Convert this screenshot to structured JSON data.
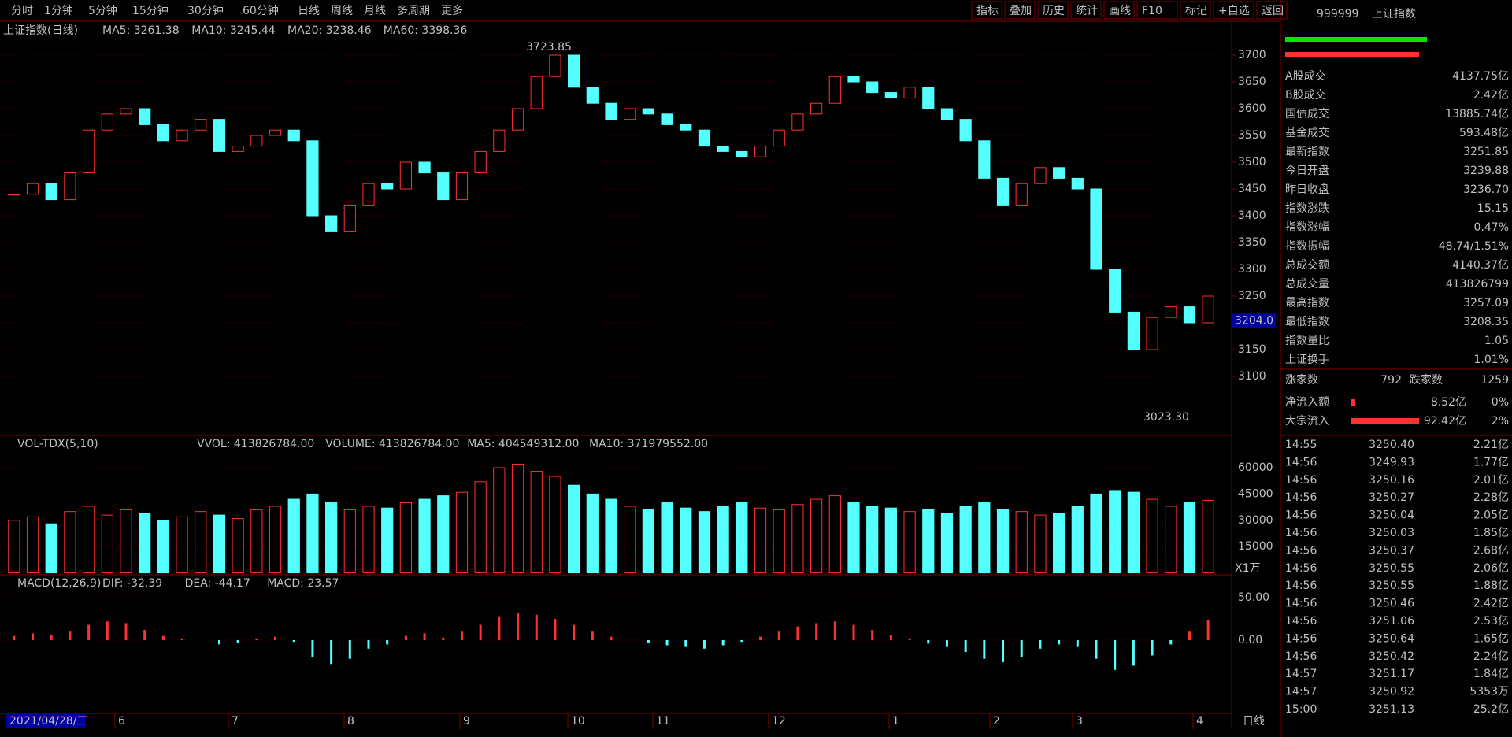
{
  "toolbar": {
    "periods": [
      "分时",
      "1分钟",
      "5分钟",
      "15分钟",
      "30分钟",
      "60分钟",
      "日线",
      "周线",
      "月线",
      "多周期",
      "更多"
    ],
    "active": "日线",
    "tools": [
      "指标",
      "叠加",
      "历史",
      "统计",
      "画线",
      "F10",
      "标记",
      "+自选",
      "返回"
    ]
  },
  "price": {
    "title": "上证指数(日线)",
    "legend": [
      "MA5: 3261.38",
      "MA10: 3245.44",
      "MA20: 3238.46",
      "MA60: 3398.36"
    ],
    "yticks": [
      3100,
      3150,
      3200,
      3250,
      3300,
      3350,
      3400,
      3450,
      3500,
      3550,
      3600,
      3650,
      3700
    ],
    "closes": [
      3440,
      3460,
      3430,
      3480,
      3560,
      3590,
      3600,
      3570,
      3540,
      3560,
      3580,
      3520,
      3530,
      3550,
      3560,
      3540,
      3400,
      3370,
      3420,
      3460,
      3450,
      3500,
      3480,
      3430,
      3480,
      3520,
      3560,
      3600,
      3660,
      3700,
      3640,
      3610,
      3580,
      3600,
      3590,
      3570,
      3560,
      3530,
      3520,
      3510,
      3530,
      3560,
      3590,
      3610,
      3660,
      3650,
      3630,
      3620,
      3640,
      3600,
      3580,
      3540,
      3470,
      3420,
      3460,
      3490,
      3470,
      3450,
      3300,
      3220,
      3150,
      3210,
      3230,
      3200,
      3250
    ],
    "high_label": {
      "value": 3723.85,
      "label": "3723.85"
    },
    "low_label": {
      "value": 3023.3,
      "label": "3023.30"
    },
    "cursor": {
      "value": 3204.0,
      "label": "3204.0"
    }
  },
  "volume": {
    "title": "VOL-TDX(5,10)",
    "legend": [
      "VVOL: 413826784.00",
      "VOLUME: 413826784.00",
      "MA5: 404549312.00",
      "MA10: 371979552.00"
    ],
    "unit": "X1万",
    "yticks": [
      15000,
      30000,
      45000,
      60000
    ],
    "values": [
      30000,
      32000,
      28000,
      35000,
      38000,
      33000,
      36000,
      34000,
      30000,
      32000,
      35000,
      33000,
      31000,
      36000,
      38000,
      42000,
      45000,
      40000,
      36000,
      38000,
      37000,
      40000,
      42000,
      44000,
      46000,
      52000,
      60000,
      62000,
      58000,
      55000,
      50000,
      45000,
      42000,
      38000,
      36000,
      40000,
      37000,
      35000,
      38000,
      40000,
      37000,
      36000,
      39000,
      42000,
      44000,
      40000,
      38000,
      37000,
      35000,
      36000,
      34000,
      38000,
      40000,
      36000,
      35000,
      33000,
      34000,
      38000,
      45000,
      47000,
      46000,
      42000,
      38000,
      40000,
      41383
    ]
  },
  "macd": {
    "title": "MACD(12,26,9)",
    "legend": [
      "DIF: -32.39",
      "DEA: -44.17",
      "MACD: 23.57"
    ],
    "yticks": [
      {
        "value": 0,
        "label": "0.00"
      },
      {
        "value": 50,
        "label": "50.00"
      }
    ],
    "values": [
      5,
      8,
      6,
      10,
      18,
      22,
      20,
      12,
      5,
      2,
      0,
      -5,
      -3,
      2,
      4,
      -2,
      -20,
      -28,
      -22,
      -10,
      -5,
      5,
      8,
      3,
      10,
      18,
      28,
      32,
      30,
      25,
      18,
      10,
      4,
      0,
      -3,
      -6,
      -8,
      -10,
      -6,
      -2,
      4,
      10,
      16,
      20,
      22,
      18,
      12,
      6,
      2,
      -4,
      -8,
      -14,
      -22,
      -26,
      -20,
      -10,
      -5,
      -8,
      -22,
      -35,
      -30,
      -18,
      -5,
      10,
      23.57
    ]
  },
  "dates": {
    "start": "2021/04/28/三",
    "months": [
      "6",
      "7",
      "8",
      "9",
      "10",
      "11",
      "12",
      "1",
      "2",
      "3",
      "4"
    ],
    "period": "日线"
  },
  "panel": {
    "code": "999999",
    "name": "上证指数",
    "stats": [
      {
        "label": "A股成交",
        "value": "4137.75亿",
        "color": "#ffff54"
      },
      {
        "label": "B股成交",
        "value": "2.42亿",
        "color": "#ffff54"
      },
      {
        "label": "国债成交",
        "value": "13885.74亿",
        "color": "#ffff54"
      },
      {
        "label": "基金成交",
        "value": "593.48亿",
        "color": "#ffff54"
      },
      {
        "label": "最新指数",
        "value": "3251.85",
        "color": "#ff4a4a"
      },
      {
        "label": "今日开盘",
        "value": "3239.88",
        "color": "#ff4a4a"
      },
      {
        "label": "昨日收盘",
        "value": "3236.70",
        "color": "#ffffff"
      },
      {
        "label": "指数涨跌",
        "value": "15.15",
        "color": "#ff4a4a"
      },
      {
        "label": "指数涨幅",
        "value": "0.47%",
        "color": "#ff4a4a"
      },
      {
        "label": "指数振幅",
        "value": "48.74/1.51%",
        "color": "#ffffff"
      },
      {
        "label": "总成交额",
        "value": "4140.37亿",
        "color": "#ffff54"
      },
      {
        "label": "总成交量",
        "value": "413826799",
        "color": "#ffff54"
      },
      {
        "label": "最高指数",
        "value": "3257.09",
        "color": "#ff4a4a"
      },
      {
        "label": "最低指数",
        "value": "3208.35",
        "color": "#00e600"
      },
      {
        "label": "指数量比",
        "value": "1.05",
        "color": "#ff4a4a"
      },
      {
        "label": "上证换手",
        "value": "1.01%",
        "color": "#ffffff"
      }
    ],
    "breadth": [
      "涨家数",
      "792",
      "跌家数",
      "1259"
    ],
    "flows": [
      [
        "净流入额",
        "8.52亿",
        "0%"
      ],
      [
        "大宗流入",
        "92.42亿",
        "2%"
      ]
    ],
    "ticks": [
      [
        "14:55",
        "3250.40",
        "2.21亿"
      ],
      [
        "14:56",
        "3249.93",
        "1.77亿"
      ],
      [
        "14:56",
        "3250.16",
        "2.01亿"
      ],
      [
        "14:56",
        "3250.27",
        "2.28亿"
      ],
      [
        "14:56",
        "3250.04",
        "2.05亿"
      ],
      [
        "14:56",
        "3250.03",
        "1.85亿"
      ],
      [
        "14:56",
        "3250.37",
        "2.68亿"
      ],
      [
        "14:56",
        "3250.55",
        "2.06亿"
      ],
      [
        "14:56",
        "3250.55",
        "1.88亿"
      ],
      [
        "14:56",
        "3250.46",
        "2.42亿"
      ],
      [
        "14:56",
        "3251.06",
        "2.53亿"
      ],
      [
        "14:56",
        "3250.64",
        "1.65亿"
      ],
      [
        "14:56",
        "3250.42",
        "2.24亿"
      ],
      [
        "14:57",
        "3251.17",
        "1.84亿"
      ],
      [
        "14:57",
        "3250.92",
        "5353万"
      ],
      [
        "15:00",
        "3251.13",
        "25.2亿"
      ]
    ]
  }
}
